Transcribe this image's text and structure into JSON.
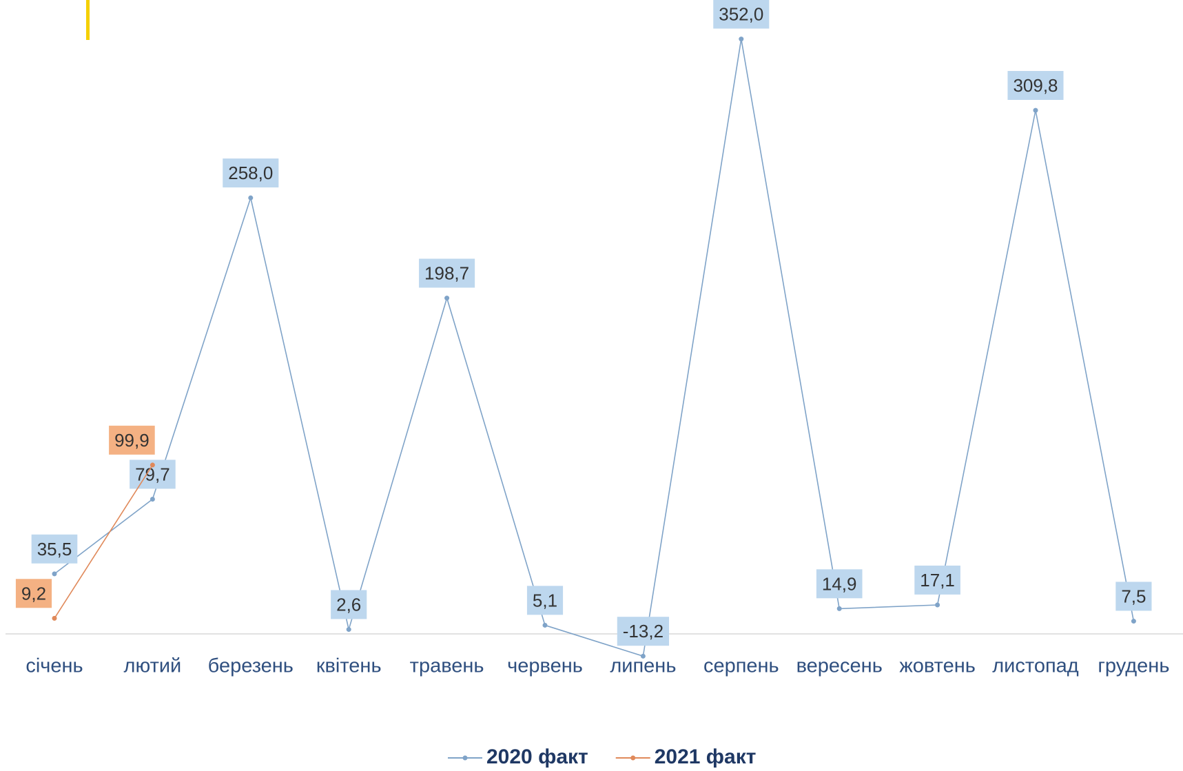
{
  "chart_data": {
    "type": "line",
    "categories": [
      "січень",
      "лютий",
      "березень",
      "квітень",
      "травень",
      "червень",
      "липень",
      "серпень",
      "вересень",
      "жовтень",
      "листопад",
      "грудень"
    ],
    "series": [
      {
        "name": "2020 факт",
        "color": "#7fa3c8",
        "label_color": "#bdd7ee",
        "values": [
          35.5,
          79.7,
          258.0,
          2.6,
          198.7,
          5.1,
          -13.2,
          352.0,
          14.9,
          17.1,
          309.8,
          7.5
        ],
        "value_labels": [
          "35,5",
          "79,7",
          "258,0",
          "2,6",
          "198,7",
          "5,1",
          "-13,2",
          "352,0",
          "14,9",
          "17,1",
          "309,8",
          "7,5"
        ]
      },
      {
        "name": "2021 факт",
        "color": "#e0895a",
        "label_color": "#f4b183",
        "values": [
          9.2,
          99.9,
          null,
          null,
          null,
          null,
          null,
          null,
          null,
          null,
          null,
          null
        ],
        "value_labels": [
          "9,2",
          "99,9",
          null,
          null,
          null,
          null,
          null,
          null,
          null,
          null,
          null,
          null
        ]
      }
    ],
    "ylim": [
      -20,
      360
    ]
  }
}
